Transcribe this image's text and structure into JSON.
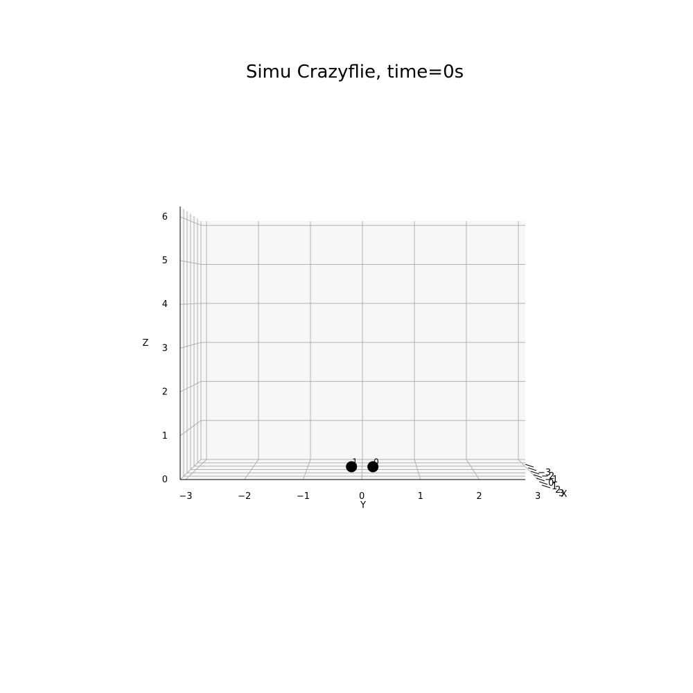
{
  "chart_data": {
    "type": "scatter",
    "title": "Simu Crazyflie, time=0s",
    "xlabel": "X",
    "ylabel": "Y",
    "zlabel": "Z",
    "y_ticks": [
      "−3",
      "−2",
      "−1",
      "0",
      "1",
      "2",
      "3"
    ],
    "z_ticks": [
      "0",
      "1",
      "2",
      "3",
      "4",
      "5",
      "6"
    ],
    "x_ticks": [
      "−3",
      "−2",
      "−1",
      "0",
      "1",
      "2",
      "3"
    ],
    "ylim": [
      -3,
      3
    ],
    "zlim": [
      0,
      6
    ],
    "xlim": [
      -3,
      3
    ],
    "grid": true,
    "points": [
      {
        "label": "1",
        "x": 0,
        "y": -0.15,
        "z": 0.15
      },
      {
        "label": "0",
        "x": 0,
        "y": 0.28,
        "z": 0.15
      }
    ]
  }
}
